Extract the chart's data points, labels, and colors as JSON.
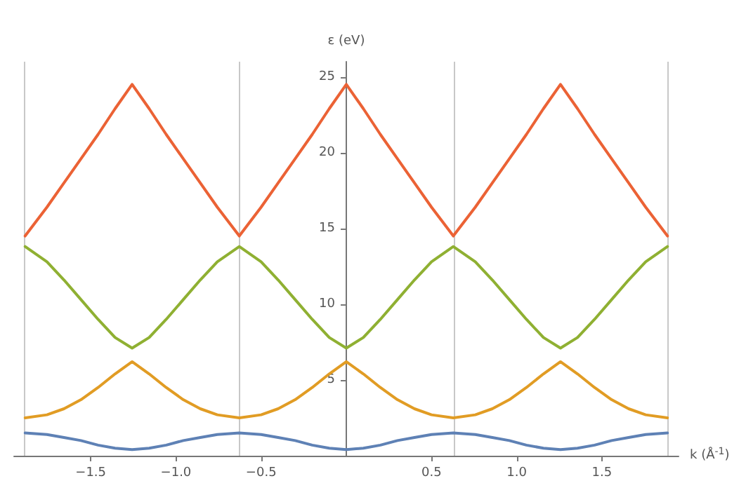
{
  "chart_data": {
    "type": "line",
    "xlabel": "k (Å$^{-1}$)",
    "ylabel": "ε (eV)",
    "x": [
      -1.885,
      -1.757,
      -1.657,
      -1.557,
      -1.457,
      -1.357,
      -1.257,
      -1.157,
      -1.057,
      -0.957,
      -0.857,
      -0.757,
      -0.628,
      -0.5,
      -0.4,
      -0.3,
      -0.2,
      -0.1,
      0,
      0.1,
      0.2,
      0.3,
      0.4,
      0.5,
      0.628,
      0.757,
      0.857,
      0.957,
      1.057,
      1.157,
      1.257,
      1.357,
      1.457,
      1.557,
      1.657,
      1.757,
      1.885
    ],
    "series": [
      {
        "color": "#5e81b5",
        "values": [
          1.5,
          1.4,
          1.2,
          1.0,
          0.7,
          0.5,
          0.4,
          0.5,
          0.7,
          1.0,
          1.2,
          1.4,
          1.5,
          1.4,
          1.2,
          1.0,
          0.7,
          0.5,
          0.4,
          0.5,
          0.7,
          1.0,
          1.2,
          1.4,
          1.5,
          1.4,
          1.2,
          1.0,
          0.7,
          0.5,
          0.4,
          0.5,
          0.7,
          1.0,
          1.2,
          1.4,
          1.5
        ]
      },
      {
        "color": "#e19c24",
        "values": [
          2.5,
          2.7,
          3.1,
          3.7,
          4.5,
          5.4,
          6.2,
          5.4,
          4.5,
          3.7,
          3.1,
          2.7,
          2.5,
          2.7,
          3.1,
          3.7,
          4.5,
          5.4,
          6.2,
          5.4,
          4.5,
          3.7,
          3.1,
          2.7,
          2.5,
          2.7,
          3.1,
          3.7,
          4.5,
          5.4,
          6.2,
          5.4,
          4.5,
          3.7,
          3.1,
          2.7,
          2.5
        ]
      },
      {
        "color": "#8fb032",
        "values": [
          13.8,
          12.8,
          11.6,
          10.3,
          9.0,
          7.8,
          7.1,
          7.8,
          9.0,
          10.3,
          11.6,
          12.8,
          13.8,
          12.8,
          11.6,
          10.3,
          9.0,
          7.8,
          7.1,
          7.8,
          9.0,
          10.3,
          11.6,
          12.8,
          13.8,
          12.8,
          11.6,
          10.3,
          9.0,
          7.8,
          7.1,
          7.8,
          9.0,
          10.3,
          11.6,
          12.8,
          13.8
        ]
      },
      {
        "color": "#eb6235",
        "values": [
          14.5,
          16.4,
          18.0,
          19.6,
          21.2,
          22.9,
          24.5,
          22.9,
          21.2,
          19.6,
          18.0,
          16.4,
          14.5,
          16.4,
          18.0,
          19.6,
          21.2,
          22.9,
          24.5,
          22.9,
          21.2,
          19.6,
          18.0,
          16.4,
          14.5,
          16.4,
          18.0,
          19.6,
          21.2,
          22.9,
          24.5,
          22.9,
          21.2,
          19.6,
          18.0,
          16.4,
          14.5
        ]
      }
    ],
    "xlim": [
      -1.95,
      1.95
    ],
    "ylim": [
      0,
      26
    ],
    "xticks": [
      {
        "value": -1.5,
        "label": "−1.5"
      },
      {
        "value": -1,
        "label": "−1.0"
      },
      {
        "value": -0.5,
        "label": "−0.5"
      },
      0.5,
      {
        "value": 1,
        "label": "1.0"
      },
      1.5
    ],
    "yticks": [
      5,
      10,
      15,
      20,
      25
    ],
    "ref_lines": [
      {
        "axis": "x",
        "value": -1.885,
        "color": "#c8c8c8"
      },
      {
        "axis": "x",
        "value": -0.628,
        "color": "#c8c8c8"
      },
      {
        "axis": "x",
        "value": 0.628,
        "color": "#c8c8c8"
      },
      {
        "axis": "x",
        "value": 1.885,
        "color": "#c8c8c8"
      }
    ],
    "marker": "none",
    "line_style": "solid",
    "grid": false
  }
}
